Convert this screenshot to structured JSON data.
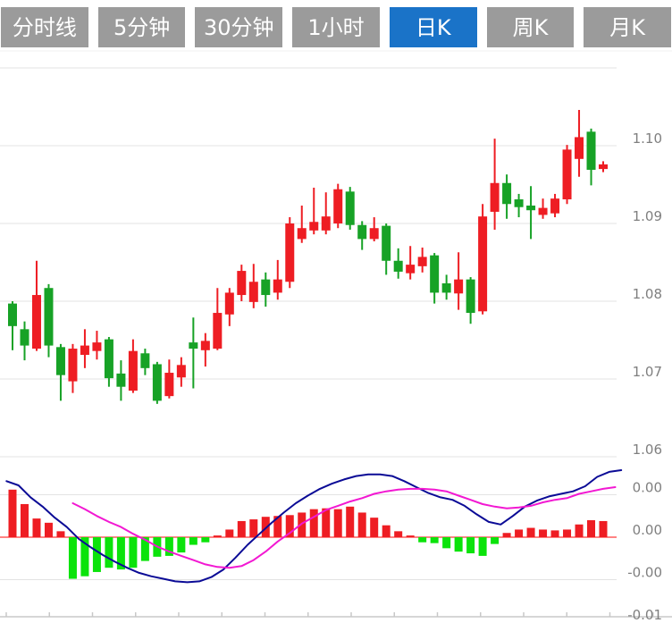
{
  "toolbar": {
    "tabs": [
      {
        "label": "分时线",
        "active": false
      },
      {
        "label": "5分钟",
        "active": false
      },
      {
        "label": "30分钟",
        "active": false
      },
      {
        "label": "1小时",
        "active": false
      },
      {
        "label": "日K",
        "active": true
      },
      {
        "label": "周K",
        "active": false
      },
      {
        "label": "月K",
        "active": false
      }
    ]
  },
  "colors": {
    "tab_inactive_bg": "#9b9b9b",
    "tab_active_bg": "#1a73c8",
    "tab_text": "#ffffff",
    "up_red": "#ee1d23",
    "down_green": "#17a226",
    "macd_green": "#0be30b",
    "dif_line": "#0b0b96",
    "dea_line": "#f218d2",
    "zero_line": "#ff5a5a",
    "gridline": "#e3e3e3",
    "axis_line": "#c8c8c8",
    "axis_text": "#7f7f7f"
  },
  "chart_data": {
    "type": "candlestick",
    "title": "",
    "legend_position": "none",
    "grid": true,
    "convention": "CN: red = up candle, green = down candle",
    "price_panel": {
      "ylabel": "",
      "ylim": [
        1.055,
        1.112
      ],
      "y_ticks": [
        {
          "label": "1.10",
          "value": 1.1
        },
        {
          "label": "1.09",
          "value": 1.09
        },
        {
          "label": "1.08",
          "value": 1.08
        },
        {
          "label": "1.07",
          "value": 1.07
        },
        {
          "label": "1.06",
          "value": 1.06
        }
      ],
      "extra_gridline_value": 1.11,
      "ohlc": [
        [
          1.0797,
          1.08,
          1.0737,
          1.0768
        ],
        [
          1.0764,
          1.0774,
          1.0724,
          1.0743
        ],
        [
          1.0739,
          1.0852,
          1.0736,
          1.0808
        ],
        [
          1.0817,
          1.0822,
          1.0728,
          1.0743
        ],
        [
          1.0741,
          1.0745,
          1.0672,
          1.0705
        ],
        [
          1.0697,
          1.0745,
          1.0682,
          1.0739
        ],
        [
          1.0731,
          1.0764,
          1.0714,
          1.0743
        ],
        [
          1.0736,
          1.0762,
          1.0725,
          1.0747
        ],
        [
          1.0751,
          1.0754,
          1.069,
          1.0701
        ],
        [
          1.0707,
          1.0724,
          1.0672,
          1.069
        ],
        [
          1.0685,
          1.0751,
          1.0682,
          1.0736
        ],
        [
          1.0733,
          1.0739,
          1.0705,
          1.0714
        ],
        [
          1.0719,
          1.0722,
          1.0668,
          1.0672
        ],
        [
          1.0678,
          1.0725,
          1.0675,
          1.0708
        ],
        [
          1.0702,
          1.0728,
          1.069,
          1.0718
        ],
        [
          1.0747,
          1.0779,
          1.0688,
          1.0739
        ],
        [
          1.0737,
          1.0759,
          1.0716,
          1.0749
        ],
        [
          1.0739,
          1.0817,
          1.0737,
          1.0785
        ],
        [
          1.0783,
          1.0817,
          1.0768,
          1.0811
        ],
        [
          1.0808,
          1.0847,
          1.08,
          1.0839
        ],
        [
          1.0799,
          1.0848,
          1.0791,
          1.0825
        ],
        [
          1.0828,
          1.0837,
          1.0793,
          1.0808
        ],
        [
          1.0811,
          1.0853,
          1.0802,
          1.0828
        ],
        [
          1.0825,
          1.0908,
          1.0817,
          1.09
        ],
        [
          1.088,
          1.0923,
          1.0875,
          1.0894
        ],
        [
          1.0891,
          1.0946,
          1.0886,
          1.0902
        ],
        [
          1.0891,
          1.094,
          1.0886,
          1.0909
        ],
        [
          1.09,
          1.0951,
          1.0894,
          1.0944
        ],
        [
          1.0941,
          1.0947,
          1.0892,
          1.0898
        ],
        [
          1.0898,
          1.0903,
          1.0866,
          1.088
        ],
        [
          1.088,
          1.0908,
          1.0877,
          1.0894
        ],
        [
          1.0897,
          1.09,
          1.0834,
          1.0852
        ],
        [
          1.0852,
          1.0868,
          1.0829,
          1.0838
        ],
        [
          1.0836,
          1.0871,
          1.0828,
          1.0847
        ],
        [
          1.0845,
          1.0869,
          1.0837,
          1.0857
        ],
        [
          1.0859,
          1.0862,
          1.0797,
          1.0811
        ],
        [
          1.0823,
          1.0834,
          1.0802,
          1.0811
        ],
        [
          1.081,
          1.0863,
          1.0789,
          1.0828
        ],
        [
          1.0828,
          1.0831,
          1.0771,
          1.0785
        ],
        [
          1.0787,
          1.0925,
          1.0783,
          1.0909
        ],
        [
          1.0915,
          1.1009,
          1.0892,
          1.0952
        ],
        [
          1.0952,
          1.0963,
          1.0906,
          1.0925
        ],
        [
          1.0931,
          1.0938,
          1.0908,
          1.0921
        ],
        [
          1.0923,
          1.0948,
          1.088,
          1.0917
        ],
        [
          1.0911,
          1.0932,
          1.0906,
          1.092
        ],
        [
          1.0913,
          1.0938,
          1.0908,
          1.0932
        ],
        [
          1.0931,
          1.1001,
          1.0925,
          1.0995
        ],
        [
          1.0983,
          1.1046,
          1.096,
          1.1011
        ],
        [
          1.1018,
          1.1022,
          1.0949,
          1.0969
        ],
        [
          1.097,
          1.098,
          1.0966,
          1.0976
        ]
      ]
    },
    "macd_panel": {
      "ylabel": "",
      "y_ticks": [
        {
          "label": "0.00",
          "value": 0.005
        },
        {
          "label": "0.00",
          "value": 0.0
        },
        {
          "label": "-0.00",
          "value": -0.005
        },
        {
          "label": "-0.01",
          "value": -0.01
        }
      ],
      "histogram": [
        0.0056,
        0.0039,
        0.0022,
        0.0017,
        0.0007,
        -0.0049,
        -0.0046,
        -0.0041,
        -0.0036,
        -0.0038,
        -0.0036,
        -0.0028,
        -0.0023,
        -0.0022,
        -0.0018,
        -0.0009,
        -0.0006,
        0.0002,
        0.0009,
        0.0019,
        0.0021,
        0.0024,
        0.0025,
        0.0026,
        0.0029,
        0.0033,
        0.0034,
        0.0033,
        0.0036,
        0.0029,
        0.0023,
        0.0014,
        0.0007,
        0.0002,
        -0.0006,
        -0.0007,
        -0.0013,
        -0.0017,
        -0.0019,
        -0.0022,
        -0.0008,
        0.0005,
        0.0009,
        0.0011,
        0.0009,
        0.0008,
        0.0009,
        0.0015,
        0.002,
        0.0019
      ],
      "dif": {
        "name": "DIF",
        "start_index": -0.5,
        "values": [
          0.0066,
          0.0061,
          0.0047,
          0.0036,
          0.0023,
          0.0012,
          -0.0002,
          -0.0012,
          -0.0021,
          -0.0029,
          -0.0036,
          -0.0042,
          -0.0046,
          -0.0049,
          -0.0052,
          -0.0053,
          -0.0052,
          -0.0047,
          -0.0038,
          -0.0024,
          -0.0009,
          0.0004,
          0.0017,
          0.0029,
          0.004,
          0.0049,
          0.0057,
          0.0063,
          0.0068,
          0.0072,
          0.0074,
          0.0074,
          0.0072,
          0.0066,
          0.0059,
          0.0052,
          0.0047,
          0.0044,
          0.0037,
          0.0027,
          0.0018,
          0.0015,
          0.0025,
          0.0036,
          0.0043,
          0.0048,
          0.0051,
          0.0054,
          0.006,
          0.0071,
          0.0077,
          0.0079
        ]
      },
      "dea": {
        "name": "DEA",
        "start_index": 5,
        "values": [
          0.004,
          0.0033,
          0.0025,
          0.0018,
          0.0012,
          0.0004,
          -0.0003,
          -0.0011,
          -0.0017,
          -0.0022,
          -0.0027,
          -0.0032,
          -0.0035,
          -0.0036,
          -0.0034,
          -0.0027,
          -0.0017,
          -0.0005,
          0.0005,
          0.0016,
          0.0024,
          0.0032,
          0.0037,
          0.0042,
          0.0046,
          0.0051,
          0.0054,
          0.0056,
          0.0057,
          0.0057,
          0.0056,
          0.0054,
          0.0049,
          0.0044,
          0.0039,
          0.0036,
          0.0034,
          0.0035,
          0.0037,
          0.0041,
          0.0044,
          0.0046,
          0.0051,
          0.0054,
          0.0057,
          0.0059
        ]
      }
    },
    "x_axis": {
      "labels": [],
      "tick_marks": 16
    }
  }
}
